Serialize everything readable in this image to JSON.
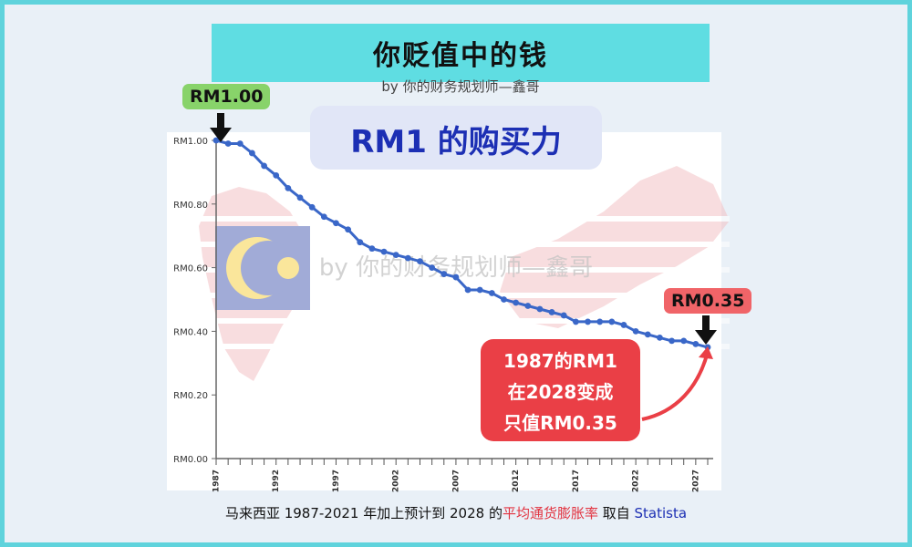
{
  "header": {
    "title": "你贬值中的钱",
    "subtitle": "by 你的财务规划师—鑫哥"
  },
  "heading": "RM1 的购买力",
  "callouts": {
    "start": "RM1.00",
    "end": "RM0.35"
  },
  "note": {
    "lines": [
      "1987的RM1",
      "在2028变成",
      "只值RM0.35"
    ]
  },
  "watermark": "by 你的财务规划师—鑫哥",
  "footer": {
    "prefix": "马来西亚 1987-2021 年加上预计到 2028 的",
    "highlight": "平均通货膨胀率",
    "middle": " 取自 ",
    "source": "Statista"
  },
  "colors": {
    "line": "#3a67c8",
    "banner": "#5fdde2",
    "heading_text": "#1c2fb4",
    "start_callout": "#88d36a",
    "end_callout": "#f06468",
    "note_box": "#ea3f46",
    "footer_highlight": "#e23340"
  },
  "chart_data": {
    "type": "line",
    "title": "",
    "xlabel": "",
    "ylabel": "",
    "ylim": [
      0,
      1.0
    ],
    "xlim": [
      1987,
      2028
    ],
    "x_ticks": [
      1987,
      1992,
      1997,
      2002,
      2007,
      2012,
      2017,
      2022,
      2027
    ],
    "y_tick_labels": [
      "RM0.00",
      "RM0.20",
      "RM0.40",
      "RM0.60",
      "RM0.80",
      "RM1.00"
    ],
    "y_ticks": [
      0,
      0.2,
      0.4,
      0.6,
      0.8,
      1.0
    ],
    "grid": false,
    "series": [
      {
        "x": [
          1987,
          1988,
          1989,
          1990,
          1991,
          1992,
          1993,
          1994,
          1995,
          1996,
          1997,
          1998,
          1999,
          2000,
          2001,
          2002,
          2003,
          2004,
          2005,
          2006,
          2007,
          2008,
          2009,
          2010,
          2011,
          2012,
          2013,
          2014,
          2015,
          2016,
          2017,
          2018,
          2019,
          2020,
          2021,
          2022,
          2023,
          2024,
          2025,
          2026,
          2027,
          2028
        ],
        "values": [
          1.0,
          0.99,
          0.99,
          0.96,
          0.92,
          0.89,
          0.85,
          0.82,
          0.79,
          0.76,
          0.74,
          0.72,
          0.68,
          0.66,
          0.65,
          0.64,
          0.63,
          0.62,
          0.6,
          0.58,
          0.57,
          0.53,
          0.53,
          0.52,
          0.5,
          0.49,
          0.48,
          0.47,
          0.46,
          0.45,
          0.43,
          0.43,
          0.43,
          0.43,
          0.42,
          0.4,
          0.39,
          0.38,
          0.37,
          0.37,
          0.36,
          0.35
        ]
      }
    ]
  }
}
